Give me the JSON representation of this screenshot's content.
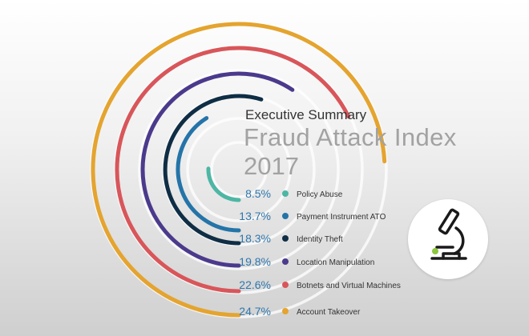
{
  "header": {
    "subtitle": "Executive Summary",
    "title": "Fraud Attack Index",
    "year": "2017"
  },
  "icons": {
    "badge": "microscope-icon"
  },
  "chart_data": {
    "type": "radial-bar",
    "categories": [
      "Policy Abuse",
      "Payment Instrument ATO",
      "Identity Theft",
      "Location Manipulation",
      "Botnets and Virtual Machines",
      "Account Takeover"
    ],
    "values": [
      8.5,
      13.7,
      18.3,
      19.8,
      22.6,
      24.7
    ],
    "value_labels": [
      "8.5%",
      "13.7%",
      "18.3%",
      "19.8%",
      "22.6%",
      "24.7%"
    ],
    "colors": [
      "#4db6a4",
      "#2474a8",
      "#0f2e45",
      "#4b3a8c",
      "#d8565a",
      "#e4a42f"
    ],
    "max_value": 25
  }
}
